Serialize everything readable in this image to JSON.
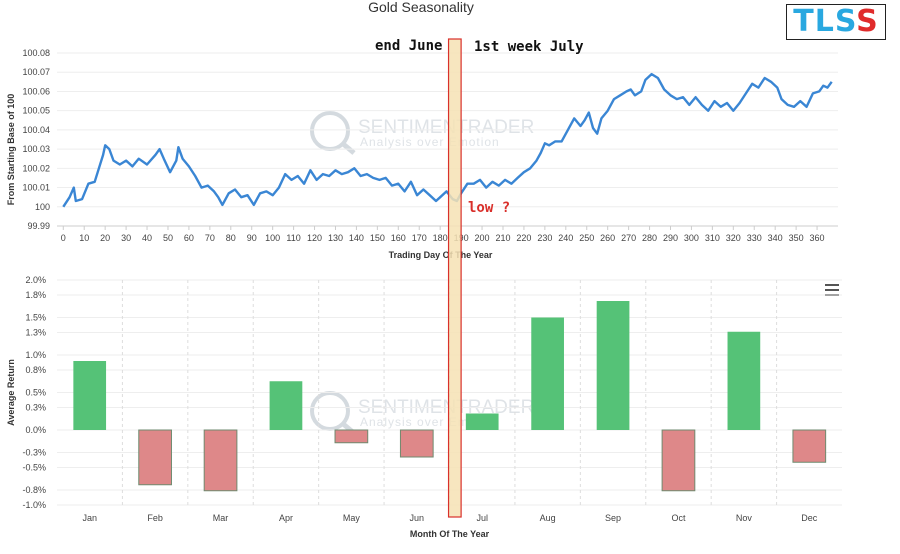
{
  "logo": {
    "letters": [
      "T",
      "L",
      "S",
      "S"
    ],
    "colors": [
      "#29a8e0",
      "#29a8e0",
      "#29a8e0",
      "#e02b2b"
    ]
  },
  "watermark": {
    "name": "SENTIMENTRADER",
    "tagline": "Analysis over Emotion"
  },
  "annotations": {
    "end_june": "end June",
    "first_week_july": "1st week July",
    "low": "low ?",
    "highlight_fill": "#f6e2b4",
    "highlight_stroke": "#d9302b"
  },
  "menu": {
    "icon": "hamburger-menu-icon"
  },
  "chart_data": [
    {
      "type": "line",
      "title": "Gold Seasonality",
      "xlabel": "Trading Day Of The Year",
      "ylabel": "From Starting Base of 100",
      "xlim": [
        -3,
        370
      ],
      "ylim": [
        99.99,
        100.08
      ],
      "x_ticks": [
        0,
        10,
        20,
        30,
        40,
        50,
        60,
        70,
        80,
        90,
        100,
        110,
        120,
        130,
        140,
        150,
        160,
        170,
        180,
        190,
        200,
        210,
        220,
        230,
        240,
        250,
        260,
        270,
        280,
        290,
        300,
        310,
        320,
        330,
        340,
        350,
        360
      ],
      "y_ticks": [
        "99.99",
        "100",
        "100.01",
        "100.02",
        "100.03",
        "100.04",
        "100.05",
        "100.06",
        "100.07",
        "100.08"
      ],
      "line_color": "#3a86d4",
      "series": [
        {
          "points": [
            [
              0,
              100.0
            ],
            [
              3,
              100.005
            ],
            [
              5,
              100.01
            ],
            [
              6,
              100.003
            ],
            [
              9,
              100.004
            ],
            [
              12,
              100.012
            ],
            [
              15,
              100.013
            ],
            [
              17,
              100.02
            ],
            [
              19,
              100.027
            ],
            [
              20,
              100.032
            ],
            [
              22,
              100.03
            ],
            [
              24,
              100.024
            ],
            [
              27,
              100.022
            ],
            [
              30,
              100.024
            ],
            [
              33,
              100.021
            ],
            [
              36,
              100.025
            ],
            [
              40,
              100.022
            ],
            [
              44,
              100.027
            ],
            [
              46,
              100.03
            ],
            [
              48,
              100.025
            ],
            [
              51,
              100.018
            ],
            [
              54,
              100.024
            ],
            [
              55,
              100.031
            ],
            [
              57,
              100.025
            ],
            [
              60,
              100.021
            ],
            [
              63,
              100.016
            ],
            [
              66,
              100.01
            ],
            [
              69,
              100.011
            ],
            [
              72,
              100.008
            ],
            [
              74,
              100.005
            ],
            [
              76,
              100.001
            ],
            [
              79,
              100.007
            ],
            [
              82,
              100.009
            ],
            [
              85,
              100.005
            ],
            [
              88,
              100.006
            ],
            [
              91,
              100.001
            ],
            [
              94,
              100.007
            ],
            [
              97,
              100.008
            ],
            [
              100,
              100.006
            ],
            [
              103,
              100.01
            ],
            [
              106,
              100.017
            ],
            [
              109,
              100.014
            ],
            [
              112,
              100.016
            ],
            [
              115,
              100.012
            ],
            [
              118,
              100.019
            ],
            [
              121,
              100.014
            ],
            [
              124,
              100.017
            ],
            [
              127,
              100.016
            ],
            [
              130,
              100.019
            ],
            [
              133,
              100.017
            ],
            [
              136,
              100.018
            ],
            [
              139,
              100.02
            ],
            [
              142,
              100.016
            ],
            [
              145,
              100.017
            ],
            [
              148,
              100.015
            ],
            [
              151,
              100.014
            ],
            [
              154,
              100.015
            ],
            [
              157,
              100.011
            ],
            [
              160,
              100.012
            ],
            [
              163,
              100.008
            ],
            [
              166,
              100.013
            ],
            [
              169,
              100.006
            ],
            [
              172,
              100.009
            ],
            [
              175,
              100.006
            ],
            [
              178,
              100.003
            ],
            [
              180,
              100.005
            ],
            [
              183,
              100.008
            ],
            [
              186,
              100.004
            ],
            [
              188,
              100.003
            ],
            [
              190,
              100.007
            ],
            [
              193,
              100.012
            ],
            [
              196,
              100.012
            ],
            [
              199,
              100.014
            ],
            [
              202,
              100.01
            ],
            [
              205,
              100.013
            ],
            [
              208,
              100.011
            ],
            [
              211,
              100.014
            ],
            [
              214,
              100.012
            ],
            [
              217,
              100.015
            ],
            [
              220,
              100.018
            ],
            [
              223,
              100.02
            ],
            [
              226,
              100.024
            ],
            [
              228,
              100.028
            ],
            [
              230,
              100.033
            ],
            [
              232,
              100.032
            ],
            [
              235,
              100.034
            ],
            [
              238,
              100.034
            ],
            [
              241,
              100.04
            ],
            [
              244,
              100.046
            ],
            [
              247,
              100.042
            ],
            [
              249,
              100.045
            ],
            [
              251,
              100.049
            ],
            [
              253,
              100.041
            ],
            [
              255,
              100.038
            ],
            [
              257,
              100.046
            ],
            [
              260,
              100.05
            ],
            [
              263,
              100.056
            ],
            [
              266,
              100.058
            ],
            [
              269,
              100.06
            ],
            [
              271,
              100.061
            ],
            [
              273,
              100.058
            ],
            [
              276,
              100.06
            ],
            [
              278,
              100.066
            ],
            [
              281,
              100.069
            ],
            [
              284,
              100.067
            ],
            [
              287,
              100.061
            ],
            [
              290,
              100.058
            ],
            [
              293,
              100.056
            ],
            [
              296,
              100.057
            ],
            [
              299,
              100.053
            ],
            [
              302,
              100.057
            ],
            [
              305,
              100.053
            ],
            [
              308,
              100.05
            ],
            [
              311,
              100.055
            ],
            [
              314,
              100.052
            ],
            [
              317,
              100.054
            ],
            [
              320,
              100.05
            ],
            [
              323,
              100.054
            ],
            [
              326,
              100.059
            ],
            [
              329,
              100.064
            ],
            [
              332,
              100.062
            ],
            [
              335,
              100.067
            ],
            [
              338,
              100.065
            ],
            [
              341,
              100.062
            ],
            [
              343,
              100.056
            ],
            [
              346,
              100.053
            ],
            [
              349,
              100.052
            ],
            [
              352,
              100.055
            ],
            [
              355,
              100.052
            ],
            [
              358,
              100.059
            ],
            [
              361,
              100.06
            ],
            [
              363,
              100.063
            ],
            [
              365,
              100.062
            ],
            [
              367,
              100.065
            ]
          ]
        }
      ]
    },
    {
      "type": "bar",
      "xlabel": "Month Of The Year",
      "ylabel": "Average Return",
      "ylim": [
        -1.0,
        2.0
      ],
      "y_ticks": [
        "2.0%",
        "1.8%",
        "1.5%",
        "1.3%",
        "1.0%",
        "0.8%",
        "0.5%",
        "0.3%",
        "0.0%",
        "-0.3%",
        "-0.5%",
        "-0.8%",
        "-1.0%"
      ],
      "categories": [
        "Jan",
        "Feb",
        "Mar",
        "Apr",
        "May",
        "Jun",
        "Jul",
        "Aug",
        "Sep",
        "Oct",
        "Nov",
        "Dec"
      ],
      "values": [
        0.92,
        -0.73,
        -0.81,
        0.65,
        -0.17,
        -0.36,
        0.22,
        1.5,
        1.72,
        -0.81,
        1.31,
        -0.43
      ],
      "positive_color": "#55c277",
      "negative_color": "#de8889"
    }
  ]
}
